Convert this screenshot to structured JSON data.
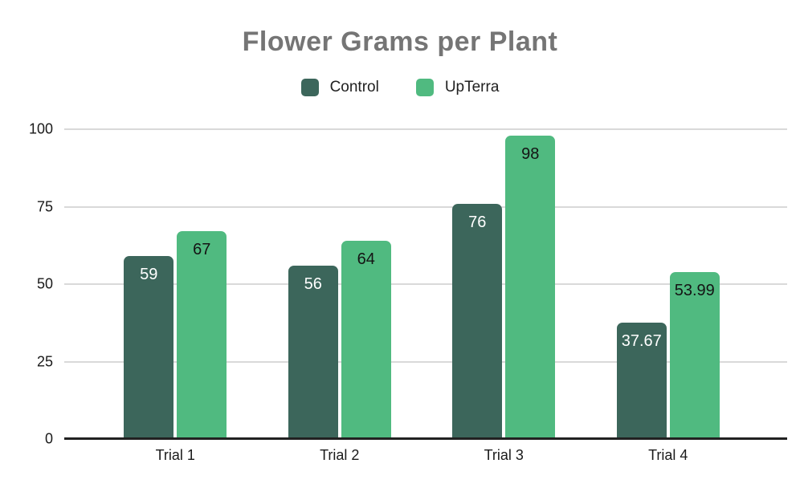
{
  "chart_data": {
    "type": "bar",
    "title": "Flower Grams per Plant",
    "categories": [
      "Trial 1",
      "Trial 2",
      "Trial 3",
      "Trial 4"
    ],
    "series": [
      {
        "name": "Control",
        "color": "#3c665b",
        "label_color": "#ffffff",
        "values": [
          59,
          56,
          76,
          37.67
        ],
        "labels": [
          "59",
          "56",
          "76",
          "37.67"
        ]
      },
      {
        "name": "UpTerra",
        "color": "#50ba80",
        "label_color": "#141414",
        "values": [
          67,
          64,
          98,
          53.99
        ],
        "labels": [
          "67",
          "64",
          "98",
          "53.99"
        ]
      }
    ],
    "xlabel": "",
    "ylabel": "",
    "ylim": [
      0,
      100
    ],
    "yticks": [
      0,
      25,
      50,
      75,
      100
    ],
    "grid": true,
    "legend_position": "top"
  }
}
